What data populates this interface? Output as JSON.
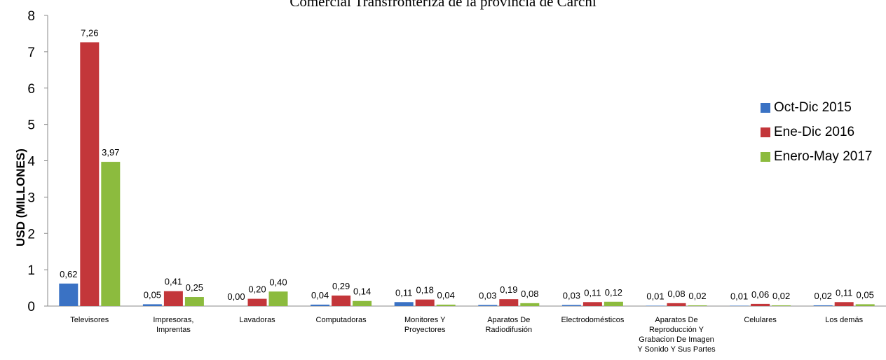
{
  "chart_data": {
    "type": "bar",
    "title": "Comercial Transfronteriza de la provincia de Carchi",
    "ylabel": "USD (MILLONES)",
    "xlabel": "",
    "ylim": [
      0,
      8
    ],
    "yticks": [
      0,
      1,
      2,
      3,
      4,
      5,
      6,
      7,
      8
    ],
    "grid": false,
    "legend_position": "right",
    "categories": [
      "Televisores",
      "Impresoras, Imprentas",
      "Lavadoras",
      "Computadoras",
      "Monitores Y Proyectores",
      "Aparatos De Radiodifusión",
      "Electrodomésticos",
      "Aparatos De Reproducción Y Grabacion De Imagen Y Sonido Y Sus Partes",
      "Celulares",
      "Los demás"
    ],
    "category_lines": [
      [
        "Televisores"
      ],
      [
        "Impresoras,",
        "Imprentas"
      ],
      [
        "Lavadoras"
      ],
      [
        "Computadoras"
      ],
      [
        "Monitores Y",
        "Proyectores"
      ],
      [
        "Aparatos De",
        "Radiodifusión"
      ],
      [
        "Electrodomésticos"
      ],
      [
        "Aparatos De",
        "Reproducción Y",
        "Grabacion De Imagen",
        "Y Sonido Y Sus Partes"
      ],
      [
        "Celulares"
      ],
      [
        "Los demás"
      ]
    ],
    "series": [
      {
        "name": "Oct-Dic 2015",
        "color": "#3a72c4",
        "values": [
          0.62,
          0.05,
          0.0,
          0.04,
          0.11,
          0.03,
          0.03,
          0.01,
          0.01,
          0.02
        ],
        "labels": [
          "0,62",
          "0,05",
          "0,00",
          "0,04",
          "0,11",
          "0,03",
          "0,03",
          "0,01",
          "0,01",
          "0,02"
        ]
      },
      {
        "name": "Ene-Dic 2016",
        "color": "#c3363a",
        "values": [
          7.26,
          0.41,
          0.2,
          0.29,
          0.18,
          0.19,
          0.11,
          0.08,
          0.06,
          0.11
        ],
        "labels": [
          "7,26",
          "0,41",
          "0,20",
          "0,29",
          "0,18",
          "0,19",
          "0,11",
          "0,08",
          "0,06",
          "0,11"
        ]
      },
      {
        "name": "Enero-May 2017",
        "color": "#8cbb3e",
        "values": [
          3.97,
          0.25,
          0.4,
          0.14,
          0.04,
          0.08,
          0.12,
          0.02,
          0.02,
          0.05
        ],
        "labels": [
          "3,97",
          "0,25",
          "0,40",
          "0,14",
          "0,04",
          "0,08",
          "0,12",
          "0,02",
          "0,02",
          "0,05"
        ]
      }
    ]
  }
}
